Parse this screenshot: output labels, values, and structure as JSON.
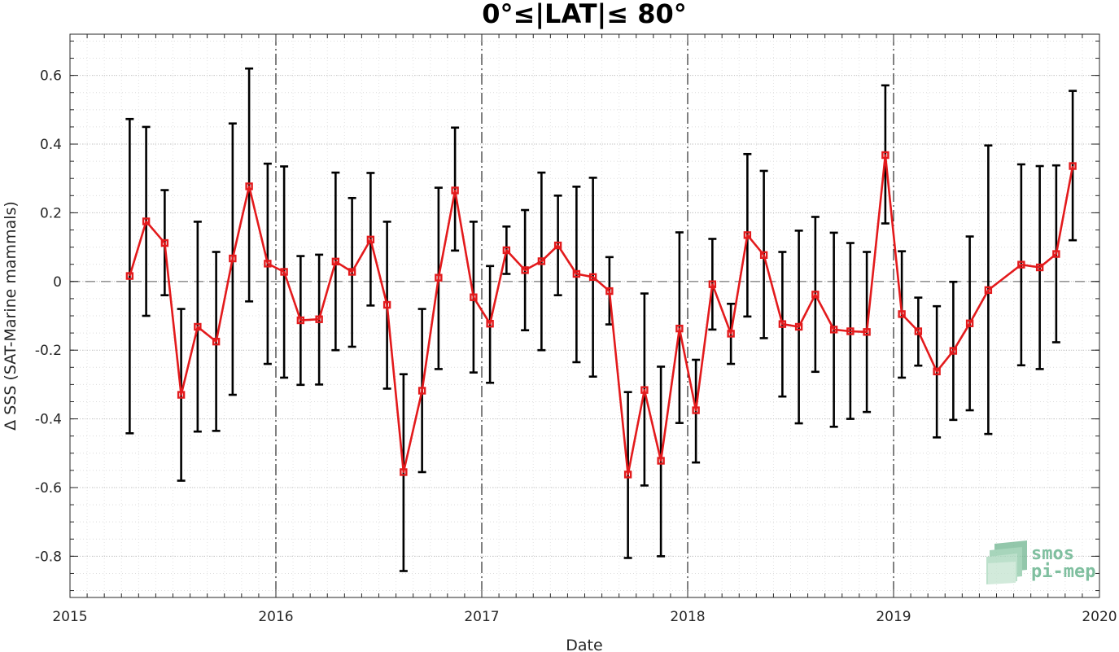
{
  "chart_data": {
    "type": "line",
    "title": "0°≤|LAT|≤ 80°",
    "xlabel": "Date",
    "ylabel": "Δ SSS (SAT-Marine mammals)",
    "xlim": [
      2015,
      2020
    ],
    "ylim": [
      -0.92,
      0.72
    ],
    "x_ticks": [
      "2015",
      "2016",
      "2017",
      "2018",
      "2019",
      "2020"
    ],
    "y_ticks": [
      "0.6",
      "0.4",
      "0.2",
      "0",
      "-0.2",
      "-0.4",
      "-0.6",
      "-0.8"
    ],
    "y_tick_values": [
      0.6,
      0.4,
      0.2,
      0,
      -0.2,
      -0.4,
      -0.6,
      -0.8
    ],
    "year_separators": [
      2016,
      2017,
      2018,
      2019
    ],
    "zero_line": 0,
    "grid": true,
    "line_color": "#e31a1c",
    "errorbar_color": "#000000",
    "series": [
      {
        "x": [
          2015.29,
          2015.37,
          2015.46,
          2015.54,
          2015.62,
          2015.71,
          2015.79,
          2015.87,
          2015.96,
          2016.04,
          2016.12,
          2016.21,
          2016.29,
          2016.37,
          2016.46,
          2016.54,
          2016.62,
          2016.71,
          2016.79,
          2016.87,
          2016.96,
          2017.04,
          2017.12,
          2017.21,
          2017.29,
          2017.37,
          2017.46,
          2017.54,
          2017.62,
          2017.71,
          2017.79,
          2017.87,
          2017.96,
          2018.04,
          2018.12,
          2018.21,
          2018.29,
          2018.37,
          2018.46,
          2018.54,
          2018.62,
          2018.71,
          2018.79,
          2018.87,
          2018.96,
          2019.04,
          2019.12,
          2019.21,
          2019.29,
          2019.37,
          2019.46,
          2019.62,
          2019.71,
          2019.79,
          2019.87
        ],
        "values": [
          0.016,
          0.175,
          0.112,
          -0.33,
          -0.132,
          -0.175,
          0.067,
          0.277,
          0.052,
          0.028,
          -0.113,
          -0.11,
          0.058,
          0.028,
          0.122,
          -0.068,
          -0.555,
          -0.318,
          0.011,
          0.265,
          -0.046,
          -0.123,
          0.091,
          0.033,
          0.059,
          0.105,
          0.022,
          0.013,
          -0.028,
          -0.562,
          -0.316,
          -0.522,
          -0.137,
          -0.375,
          -0.008,
          -0.152,
          0.135,
          0.077,
          -0.124,
          -0.132,
          -0.038,
          -0.14,
          -0.145,
          -0.147,
          0.368,
          -0.095,
          -0.145,
          -0.262,
          -0.202,
          -0.122,
          -0.025,
          0.049,
          0.041,
          0.08,
          0.336
        ],
        "err_lower": [
          -0.442,
          -0.1,
          -0.04,
          -0.58,
          -0.437,
          -0.435,
          -0.33,
          -0.058,
          -0.24,
          -0.28,
          -0.301,
          -0.3,
          -0.2,
          -0.19,
          -0.07,
          -0.312,
          -0.843,
          -0.555,
          -0.255,
          0.09,
          -0.265,
          -0.295,
          0.022,
          -0.142,
          -0.2,
          -0.04,
          -0.235,
          -0.277,
          -0.125,
          -0.805,
          -0.594,
          -0.8,
          -0.412,
          -0.527,
          -0.14,
          -0.24,
          -0.102,
          -0.165,
          -0.335,
          -0.413,
          -0.263,
          -0.423,
          -0.4,
          -0.38,
          0.169,
          -0.28,
          -0.245,
          -0.454,
          -0.403,
          -0.375,
          -0.444,
          -0.244,
          -0.255,
          -0.177,
          0.12
        ],
        "err_upper": [
          0.473,
          0.45,
          0.266,
          -0.08,
          0.174,
          0.086,
          0.46,
          0.62,
          0.343,
          0.335,
          0.074,
          0.078,
          0.317,
          0.243,
          0.316,
          0.174,
          -0.27,
          -0.08,
          0.273,
          0.448,
          0.174,
          0.045,
          0.16,
          0.208,
          0.317,
          0.25,
          0.276,
          0.302,
          0.071,
          -0.322,
          -0.035,
          -0.248,
          0.143,
          -0.228,
          0.124,
          -0.065,
          0.371,
          0.322,
          0.086,
          0.148,
          0.188,
          0.142,
          0.112,
          0.086,
          0.571,
          0.088,
          -0.047,
          -0.072,
          -0.001,
          0.131,
          0.396,
          0.341,
          0.336,
          0.338,
          0.555
        ]
      }
    ]
  },
  "logo": {
    "line1": "smos",
    "line2": "pi-mep"
  }
}
